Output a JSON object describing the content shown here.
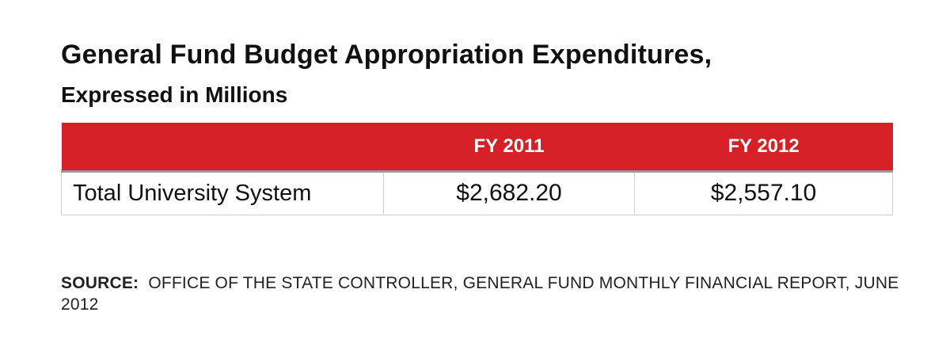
{
  "title": "General Fund Budget Appropriation Expenditures,",
  "subtitle": "Expressed in Millions",
  "colors": {
    "header_bg": "#d62027",
    "header_text": "#ffffff",
    "cell_border": "#cfcfcf"
  },
  "table": {
    "columns": [
      "",
      "FY 2011",
      "FY 2012"
    ],
    "rows": [
      {
        "label": "Total University System",
        "cells": [
          "$2,682.20",
          "$2,557.10"
        ]
      }
    ]
  },
  "source": {
    "label": "SOURCE:",
    "text": "OFFICE OF THE STATE CONTROLLER, GENERAL FUND MONTHLY FINANCIAL REPORT, JUNE 2012"
  },
  "chart_data": {
    "type": "table",
    "title": "General Fund Budget Appropriation Expenditures,",
    "subtitle": "Expressed in Millions",
    "categories": [
      "FY 2011",
      "FY 2012"
    ],
    "series": [
      {
        "name": "Total University System",
        "values": [
          2682.2,
          2557.1
        ]
      }
    ]
  }
}
